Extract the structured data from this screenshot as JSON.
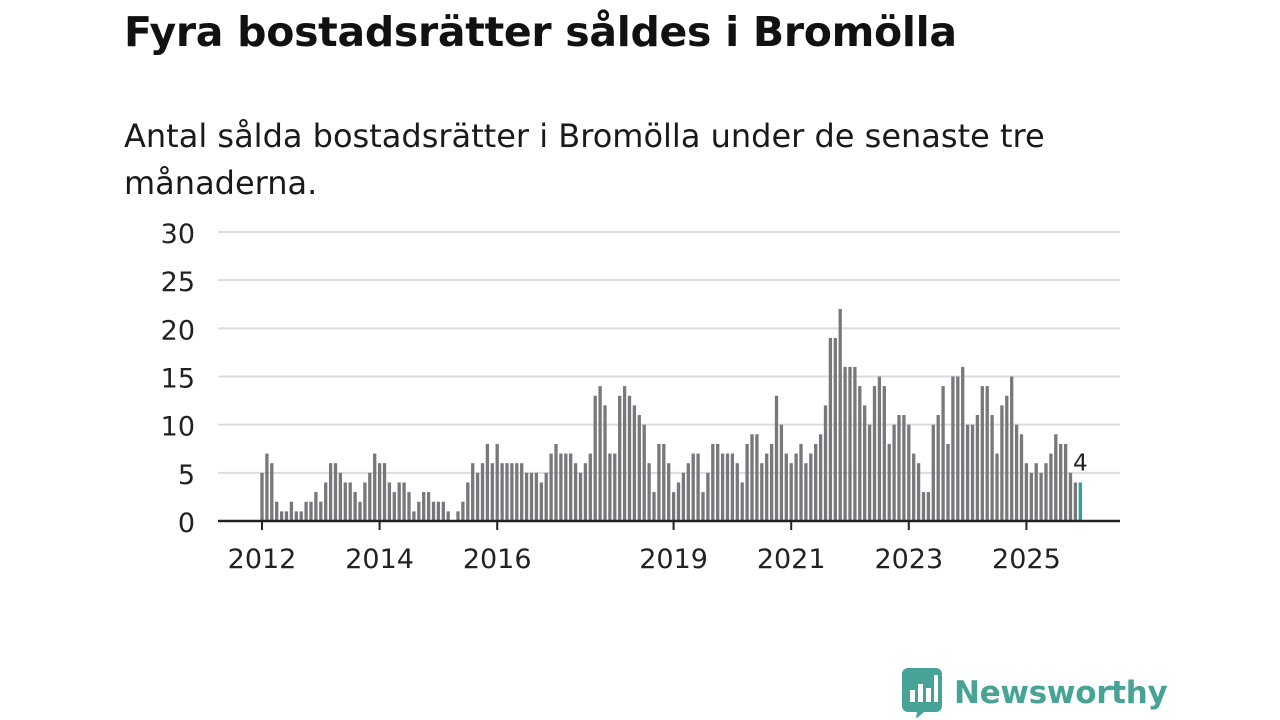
{
  "title": "Fyra bostadsrätter såldes i Bromölla",
  "subtitle": "Antal sålda bostadsrätter i Bromölla under de senaste tre månaderna.",
  "brand": {
    "name": "Newsworthy",
    "color": "#47a395"
  },
  "chart_data": {
    "type": "bar",
    "title": "Fyra bostadsrätter såldes i Bromölla",
    "subtitle": "Antal sålda bostadsrätter i Bromölla under de senaste tre månaderna.",
    "xlabel": "",
    "ylabel": "",
    "ylim": [
      0,
      30
    ],
    "yticks": [
      0,
      5,
      10,
      15,
      20,
      25,
      30
    ],
    "grid": true,
    "bar_color": "#78777c",
    "highlight_color": "#2ba39a",
    "start": "2012-01",
    "frequency": "monthly",
    "xtick_labels": [
      {
        "label": "2012",
        "index": 0
      },
      {
        "label": "2014",
        "index": 24
      },
      {
        "label": "2016",
        "index": 48
      },
      {
        "label": "2019",
        "index": 84
      },
      {
        "label": "2021",
        "index": 108
      },
      {
        "label": "2023",
        "index": 132
      },
      {
        "label": "2025",
        "index": 156
      }
    ],
    "values": [
      5,
      7,
      6,
      2,
      1,
      1,
      2,
      1,
      1,
      2,
      2,
      3,
      2,
      4,
      6,
      6,
      5,
      4,
      4,
      3,
      2,
      4,
      5,
      7,
      6,
      6,
      4,
      3,
      4,
      4,
      3,
      1,
      2,
      3,
      3,
      2,
      2,
      2,
      1,
      0,
      1,
      2,
      4,
      6,
      5,
      6,
      8,
      6,
      8,
      6,
      6,
      6,
      6,
      6,
      5,
      5,
      5,
      4,
      5,
      7,
      8,
      7,
      7,
      7,
      6,
      5,
      6,
      7,
      13,
      14,
      12,
      7,
      7,
      13,
      14,
      13,
      12,
      11,
      10,
      6,
      3,
      8,
      8,
      6,
      3,
      4,
      5,
      6,
      7,
      7,
      3,
      5,
      8,
      8,
      7,
      7,
      7,
      6,
      4,
      8,
      9,
      9,
      6,
      7,
      8,
      13,
      10,
      7,
      6,
      7,
      8,
      6,
      7,
      8,
      9,
      12,
      19,
      19,
      22,
      16,
      16,
      16,
      14,
      12,
      10,
      14,
      15,
      14,
      8,
      10,
      11,
      11,
      10,
      7,
      6,
      3,
      3,
      10,
      11,
      14,
      8,
      15,
      15,
      16,
      10,
      10,
      11,
      14,
      14,
      11,
      7,
      12,
      13,
      15,
      10,
      9,
      6,
      5,
      6,
      5,
      6,
      7,
      9,
      8,
      8,
      5,
      4,
      4
    ],
    "highlight_index": 167,
    "annotation": {
      "label": "4",
      "index": 167
    }
  }
}
